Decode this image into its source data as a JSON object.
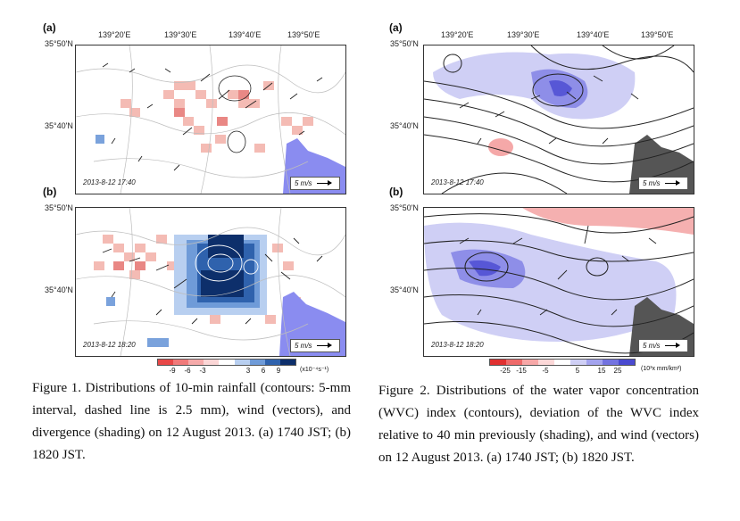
{
  "figure1": {
    "panel_a_label": "(a)",
    "panel_b_label": "(b)",
    "lon_ticks": [
      "139°20'E",
      "139°30'E",
      "139°40'E",
      "139°50'E"
    ],
    "lat_ticks": [
      "35°50'N",
      "35°40'N"
    ],
    "panel_a_time": "2013-8-12 17:40",
    "panel_b_time": "2013-8-12 18:20",
    "wind_scale": "5 m/s",
    "colorbar_ticks": [
      "-9",
      "-6",
      "-3",
      "3",
      "6",
      "9"
    ],
    "colorbar_unit": "(x10⁻⁴s⁻¹)",
    "colorbar_colors": [
      "#e84848",
      "#f07a7a",
      "#f5aaaa",
      "#fbd6d6",
      "#ffffff",
      "#b8cff0",
      "#6f9bd8",
      "#2f62ad",
      "#0d2f6b"
    ],
    "caption": "Figure 1. Distributions of 10-min rainfall (contours: 5-mm interval, dashed line is 2.5 mm), wind (vectors), and divergence (shading) on 12 August 2013. (a) 1740 JST; (b) 1820 JST."
  },
  "figure2": {
    "panel_a_label": "(a)",
    "panel_b_label": "(b)",
    "lon_ticks": [
      "139°20'E",
      "139°30'E",
      "139°40'E",
      "139°50'E"
    ],
    "lat_ticks": [
      "35°50'N",
      "35°40'N"
    ],
    "panel_a_time": "2013-8-12 17:40",
    "panel_b_time": "2013-8-12 18:20",
    "wind_scale": "5 m/s",
    "colorbar_ticks": [
      "-25",
      "-15",
      "-5",
      "5",
      "15",
      "25"
    ],
    "colorbar_unit": "(10³x mm/km²)",
    "colorbar_colors": [
      "#e03030",
      "#ee6a6a",
      "#f7a8a8",
      "#fcd8d8",
      "#ffffff",
      "#cfcff5",
      "#a3a3ee",
      "#7373e0",
      "#4a4ad0"
    ],
    "caption": "Figure 2. Distributions of the water vapor concentration (WVC) index (contours), deviation of the WVC index relative to 40 min previously (shading), and wind (vectors) on 12 August 2013. (a) 1740 JST; (b) 1820 JST."
  }
}
